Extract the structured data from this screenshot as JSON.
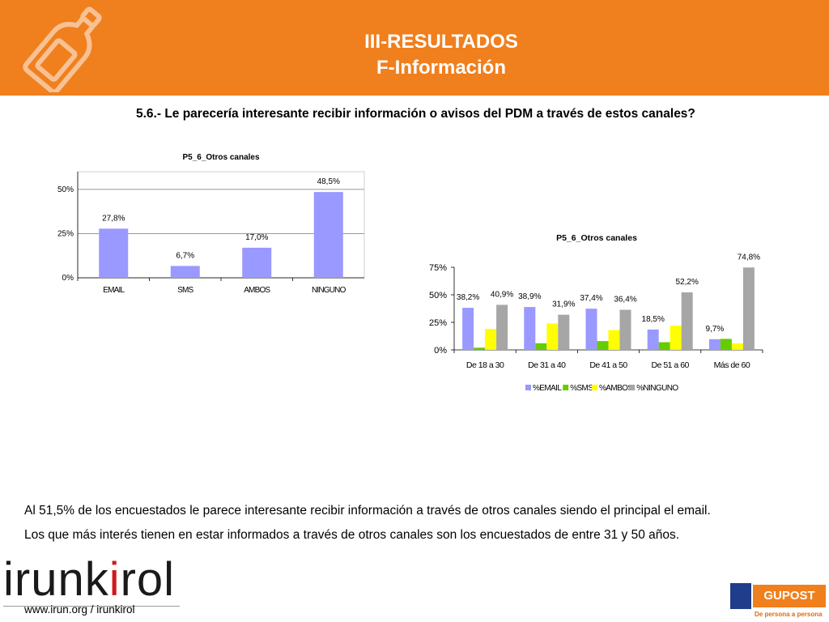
{
  "header": {
    "title": "III-RESULTADOS",
    "subtitle": "F-Información",
    "icon": "bottle-icon",
    "bg": "#f07f1d"
  },
  "question": "5.6.- Le parecería interesante recibir información o avisos del PDM a través de estos canales?",
  "chart_data": [
    {
      "type": "bar",
      "title": "P5_6_Otros canales",
      "categories": [
        "EMAIL",
        "SMS",
        "AMBOS",
        "NINGUNO"
      ],
      "values": [
        27.8,
        6.7,
        17.0,
        48.5
      ],
      "labels": [
        "27,8%",
        "6,7%",
        "17,0%",
        "48,5%"
      ],
      "yticks": [
        "0%",
        "25%",
        "50%"
      ],
      "ylim": [
        0,
        60
      ],
      "grid": true,
      "color": "#9999ff"
    },
    {
      "type": "bar",
      "title": "P5_6_Otros canales",
      "categories": [
        "De 18 a 30",
        "De 31 a 40",
        "De 41 a 50",
        "De 51 a 60",
        "Más de 60"
      ],
      "series": [
        {
          "name": "%EMAIL",
          "values": [
            38.2,
            38.9,
            37.4,
            18.5,
            9.7
          ],
          "color": "#9999ff"
        },
        {
          "name": "%SMS",
          "values": [
            2.0,
            6.0,
            8.0,
            7.0,
            10.0
          ],
          "color": "#66cc00"
        },
        {
          "name": "%AMBOS",
          "values": [
            19.0,
            24.0,
            18.0,
            22.0,
            6.0
          ],
          "color": "#ffff00"
        },
        {
          "name": "%NINGUNO",
          "values": [
            40.9,
            31.9,
            36.4,
            52.2,
            74.8
          ],
          "color": "#a6a6a6"
        }
      ],
      "annotations": [
        {
          "series": 0,
          "index": 0,
          "text": "38,2%"
        },
        {
          "series": 3,
          "index": 0,
          "text": "40,9%"
        },
        {
          "series": 0,
          "index": 1,
          "text": "38,9%"
        },
        {
          "series": 3,
          "index": 1,
          "text": "31,9%"
        },
        {
          "series": 0,
          "index": 2,
          "text": "37,4%"
        },
        {
          "series": 3,
          "index": 2,
          "text": "36,4%"
        },
        {
          "series": 0,
          "index": 3,
          "text": "18,5%"
        },
        {
          "series": 3,
          "index": 3,
          "text": "52,2%"
        },
        {
          "series": 0,
          "index": 4,
          "text": "9,7%"
        },
        {
          "series": 3,
          "index": 4,
          "text": "74,8%"
        }
      ],
      "yticks": [
        "0%",
        "25%",
        "50%",
        "75%"
      ],
      "ylim": [
        0,
        75
      ],
      "grid": false,
      "legend": "bottom"
    }
  ],
  "summary": [
    "Al 51,5% de los encuestados le parece interesante recibir información a través de otros canales siendo el principal el email.",
    "Los que más interés tienen en estar informados a través de otros canales son los encuestados de entre 31 y 50 años."
  ],
  "footer": {
    "logo_main": "irunk",
    "logo_accent": "i",
    "logo_end": "rol",
    "url": "www.irun.org / irunkirol",
    "partner": "GUPOST",
    "partner_slogan": "De persona a persona"
  }
}
